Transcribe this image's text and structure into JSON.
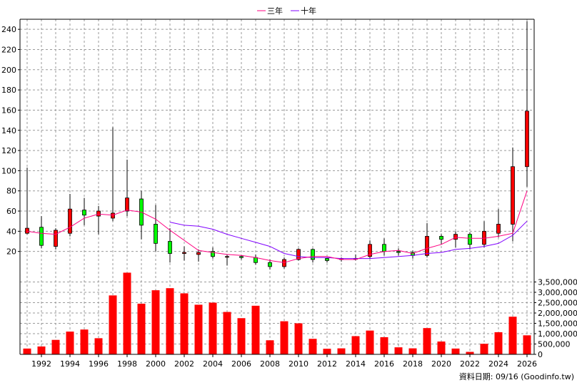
{
  "chart_data": {
    "type": "candlestick+bar",
    "legend": [
      {
        "label": "三年",
        "color": "#FF0080"
      },
      {
        "label": "十年",
        "color": "#8000FF"
      }
    ],
    "footer": "資料日期: 09/16  (Goodinfo.tw)",
    "price_axis": {
      "ylim": [
        0,
        250
      ],
      "ticks": [
        20,
        40,
        60,
        80,
        100,
        120,
        140,
        160,
        180,
        200,
        220,
        240
      ]
    },
    "volume_axis": {
      "ylim": [
        0,
        4000000
      ],
      "ticks": [
        0,
        500000,
        1000000,
        1500000,
        2000000,
        2500000,
        3000000,
        3500000
      ],
      "tick_labels": [
        "0",
        "500,000",
        "1,000,000",
        "1,500,000",
        "2,000,000",
        "2,500,000",
        "3,000,000",
        "3,500,000"
      ]
    },
    "x_axis": {
      "range": [
        1990.5,
        2026.5
      ],
      "ticks": [
        1992,
        1994,
        1996,
        1998,
        2000,
        2002,
        2004,
        2006,
        2008,
        2010,
        2012,
        2014,
        2016,
        2018,
        2020,
        2022,
        2024,
        2026
      ]
    },
    "years": [
      1991,
      1992,
      1993,
      1994,
      1995,
      1996,
      1997,
      1998,
      1999,
      2000,
      2001,
      2002,
      2003,
      2004,
      2005,
      2006,
      2007,
      2008,
      2009,
      2010,
      2011,
      2012,
      2013,
      2014,
      2015,
      2016,
      2017,
      2018,
      2019,
      2020,
      2021,
      2022,
      2023,
      2024,
      2025,
      2026
    ],
    "candles": [
      {
        "o": 38,
        "h": 103,
        "l": 37,
        "c": 43
      },
      {
        "o": 44,
        "h": 55,
        "l": 23,
        "c": 26
      },
      {
        "o": 25,
        "h": 43,
        "l": 22,
        "c": 41
      },
      {
        "o": 38,
        "h": 77,
        "l": 35,
        "c": 62
      },
      {
        "o": 61,
        "h": 73,
        "l": 46,
        "c": 56
      },
      {
        "o": 55,
        "h": 65,
        "l": 37,
        "c": 60
      },
      {
        "o": 53,
        "h": 143,
        "l": 50,
        "c": 58
      },
      {
        "o": 60,
        "h": 111,
        "l": 55,
        "c": 73
      },
      {
        "o": 72,
        "h": 80,
        "l": 32,
        "c": 46
      },
      {
        "o": 47,
        "h": 66,
        "l": 20,
        "c": 28
      },
      {
        "o": 30,
        "h": 43,
        "l": 9,
        "c": 18
      },
      {
        "o": 18,
        "h": 25,
        "l": 11,
        "c": 19
      },
      {
        "o": 17,
        "h": 22,
        "l": 10,
        "c": 19
      },
      {
        "o": 20,
        "h": 24,
        "l": 13,
        "c": 15
      },
      {
        "o": 15,
        "h": 17,
        "l": 6,
        "c": 15
      },
      {
        "o": 15,
        "h": 16,
        "l": 12,
        "c": 14
      },
      {
        "o": 14,
        "h": 17,
        "l": 7,
        "c": 9
      },
      {
        "o": 9,
        "h": 12,
        "l": 2,
        "c": 5
      },
      {
        "o": 5,
        "h": 14,
        "l": 3,
        "c": 12
      },
      {
        "o": 12,
        "h": 23,
        "l": 11,
        "c": 22
      },
      {
        "o": 22,
        "h": 23,
        "l": 9,
        "c": 12
      },
      {
        "o": 13,
        "h": 14,
        "l": 9,
        "c": 11
      },
      {
        "o": 12,
        "h": 14,
        "l": 10,
        "c": 13
      },
      {
        "o": 13,
        "h": 17,
        "l": 11,
        "c": 13
      },
      {
        "o": 15,
        "h": 31,
        "l": 13,
        "c": 27
      },
      {
        "o": 27,
        "h": 33,
        "l": 16,
        "c": 20
      },
      {
        "o": 20,
        "h": 23,
        "l": 16,
        "c": 19
      },
      {
        "o": 19,
        "h": 21,
        "l": 13,
        "c": 16
      },
      {
        "o": 16,
        "h": 48,
        "l": 14,
        "c": 35
      },
      {
        "o": 35,
        "h": 37,
        "l": 27,
        "c": 32
      },
      {
        "o": 32,
        "h": 40,
        "l": 24,
        "c": 37
      },
      {
        "o": 37,
        "h": 39,
        "l": 22,
        "c": 27
      },
      {
        "o": 27,
        "h": 50,
        "l": 24,
        "c": 40
      },
      {
        "o": 38,
        "h": 62,
        "l": 34,
        "c": 47
      },
      {
        "o": 47,
        "h": 123,
        "l": 30,
        "c": 104
      },
      {
        "o": 104,
        "h": 248,
        "l": 84,
        "c": 159
      }
    ],
    "ma3": [
      40,
      38,
      37,
      44,
      53,
      57,
      56,
      61,
      59,
      52,
      41,
      31,
      21,
      19,
      17,
      16,
      14,
      11,
      9,
      13,
      15,
      15,
      12,
      12,
      17,
      20,
      21,
      18,
      23,
      27,
      34,
      33,
      33,
      35,
      38,
      80
    ],
    "ma10": [
      null,
      null,
      null,
      null,
      null,
      null,
      null,
      null,
      null,
      null,
      49,
      46,
      45,
      42,
      37,
      33,
      29,
      25,
      18,
      15,
      14,
      14,
      13,
      13,
      13,
      14,
      15,
      16,
      18,
      19,
      22,
      23,
      25,
      28,
      36,
      50
    ],
    "volume": [
      280000,
      380000,
      700000,
      1100000,
      1200000,
      780000,
      2850000,
      3950000,
      2450000,
      3100000,
      3200000,
      2950000,
      2400000,
      2500000,
      2050000,
      1750000,
      2350000,
      680000,
      1600000,
      1500000,
      750000,
      270000,
      290000,
      880000,
      1150000,
      830000,
      340000,
      290000,
      1270000,
      620000,
      280000,
      120000,
      510000,
      1070000,
      1820000,
      920000
    ]
  }
}
